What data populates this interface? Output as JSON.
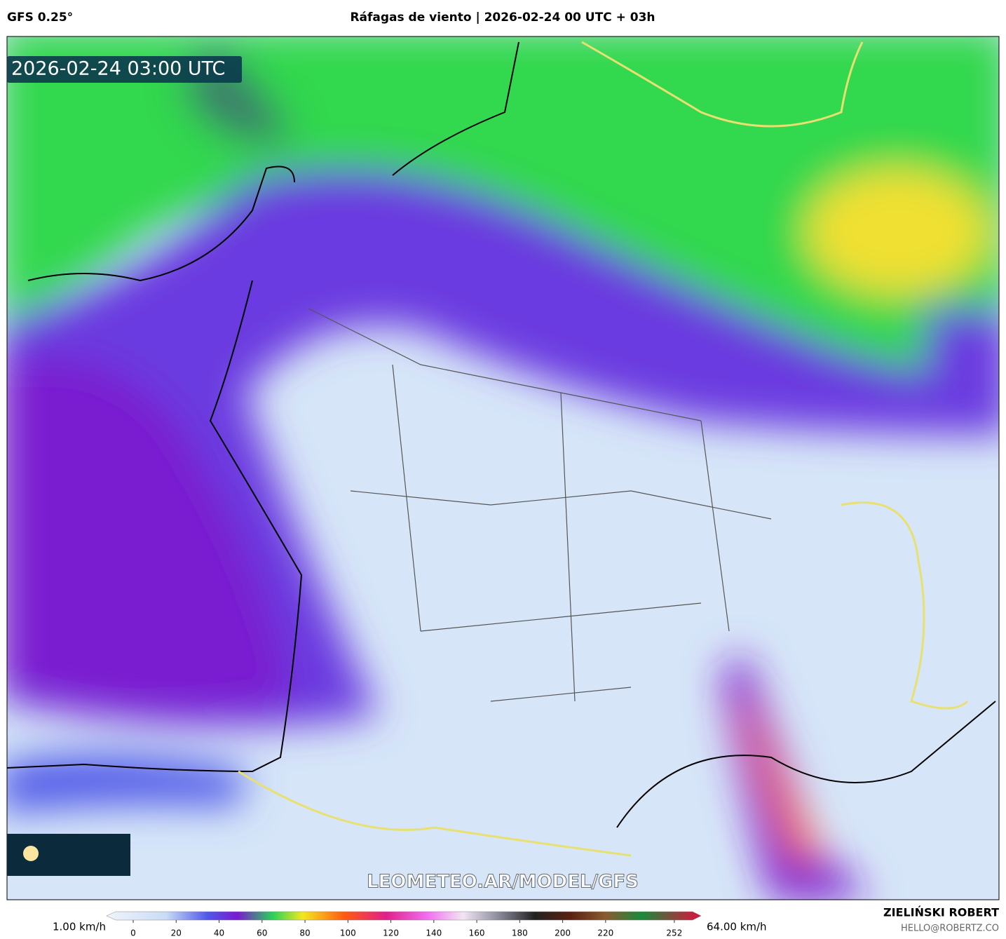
{
  "header": {
    "model": "GFS 0.25°",
    "title": "Ráfagas de viento | 2026-02-24 00 UTC + 03h"
  },
  "map": {
    "timestamp": "2026-02-24 03:00 UTC",
    "watermark": "LEOMETEO.AR/MODEL/GFS"
  },
  "colorbar": {
    "min_label": "1.00 km/h",
    "max_label": "64.00 km/h",
    "ticks": [
      0,
      20,
      40,
      60,
      80,
      100,
      120,
      140,
      160,
      180,
      200,
      220,
      252
    ]
  },
  "footer": {
    "author": "ZIELIŃSKI ROBERT",
    "email": "HELLO@ROBERTZ.CO"
  }
}
